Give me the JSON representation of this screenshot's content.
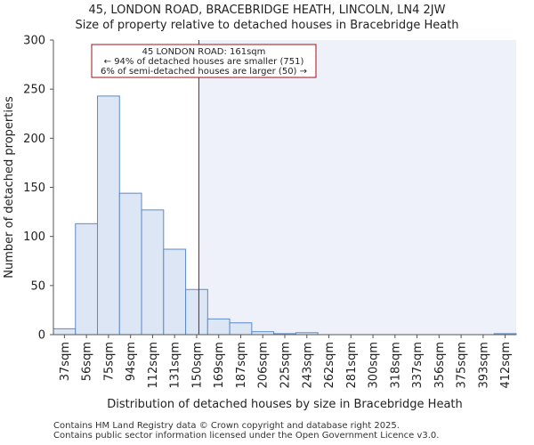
{
  "title_line1": "45, LONDON ROAD, BRACEBRIDGE HEATH, LINCOLN, LN4 2JW",
  "title_line2": "Size of property relative to detached houses in Bracebridge Heath",
  "footer": {
    "line1": "Contains HM Land Registry data © Crown copyright and database right 2025.",
    "line2": "Contains public sector information licensed under the Open Government Licence v3.0."
  },
  "colors": {
    "bar_fill": "#dce6f5",
    "bar_stroke": "#5b8ac9",
    "marker": "#a01010",
    "shade": "#eef1fa",
    "axis": "#555555"
  },
  "chart_data": {
    "type": "bar",
    "title": "Size of property relative to detached houses in Bracebridge Heath",
    "xlabel": "Distribution of detached houses by size in Bracebridge Heath",
    "ylabel": "Number of detached properties",
    "ylim": [
      0,
      300
    ],
    "yticks": [
      0,
      50,
      100,
      150,
      200,
      250,
      300
    ],
    "categories": [
      "37sqm",
      "56sqm",
      "75sqm",
      "94sqm",
      "112sqm",
      "131sqm",
      "150sqm",
      "169sqm",
      "187sqm",
      "206sqm",
      "225sqm",
      "243sqm",
      "262sqm",
      "281sqm",
      "300sqm",
      "318sqm",
      "337sqm",
      "356sqm",
      "375sqm",
      "393sqm",
      "412sqm"
    ],
    "values": [
      6,
      113,
      243,
      144,
      127,
      87,
      46,
      16,
      12,
      3,
      1,
      2,
      0,
      0,
      0,
      0,
      0,
      0,
      0,
      0,
      1
    ],
    "marker_value_index": 6.6,
    "annotation": {
      "line1": "45 LONDON ROAD: 161sqm",
      "line2": "← 94% of detached houses are smaller (751)",
      "line3": "6% of semi-detached houses are larger (50) →"
    }
  }
}
